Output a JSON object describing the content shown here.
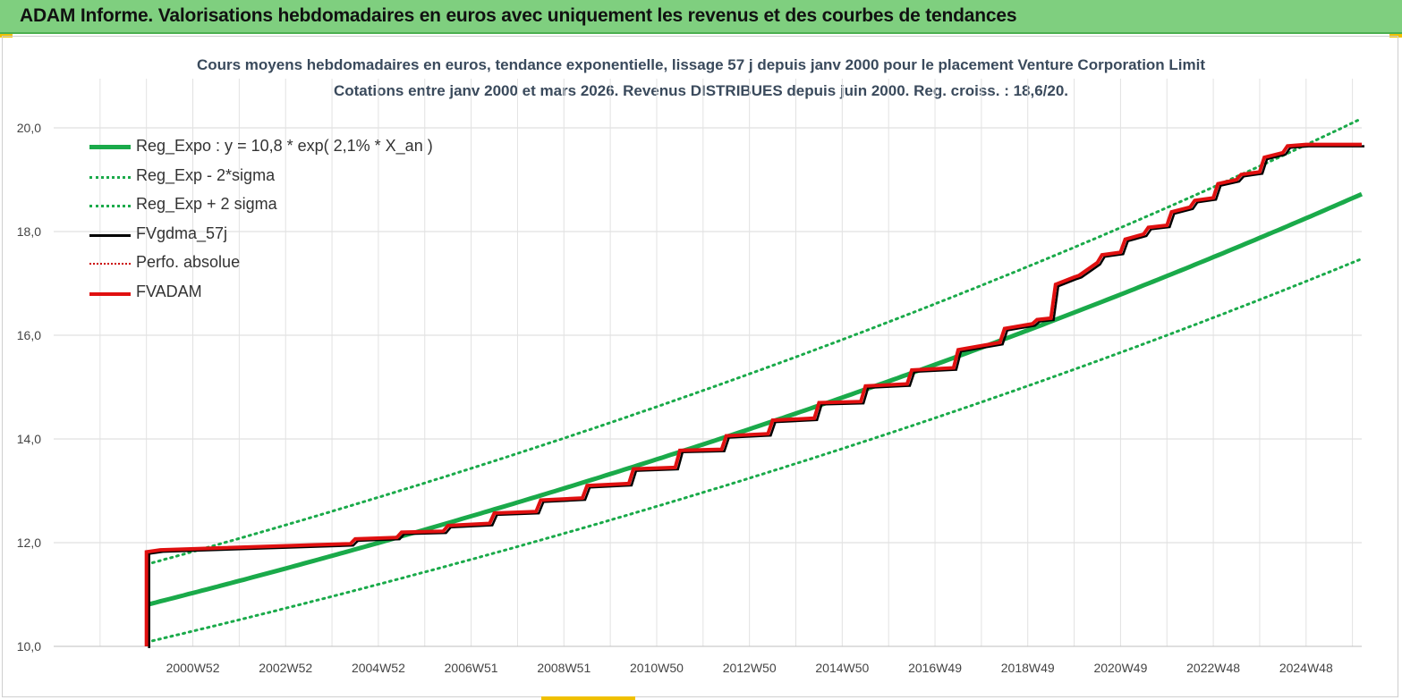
{
  "header": {
    "title": "ADAM Informe. Valorisations hebdomadaires en euros avec uniquement les revenus et des courbes de tendances"
  },
  "chart_data": {
    "type": "line",
    "title": "Cours moyens hebdomadaires en euros, tendance exponentielle, lissage 57 j depuis janv 2000  pour le placement Venture Corporation Limit",
    "subtitle": "Cotations entre janv 2000 et mars 2026. Revenus  DISTRIBUES depuis juin 2000. Reg.  croiss. : 18,6/20.",
    "xlabel": "",
    "ylabel": "",
    "ylim": [
      10,
      20
    ],
    "yticks": [
      "10,0",
      "12,0",
      "14,0",
      "16,0",
      "18,0",
      "20,0"
    ],
    "xticks": [
      "2000W52",
      "2002W52",
      "2004W52",
      "2006W51",
      "2008W51",
      "2010W50",
      "2012W50",
      "2014W50",
      "2016W49",
      "2018W49",
      "2020W49",
      "2022W48",
      "2024W48"
    ],
    "grid": true,
    "legend_position": "top-left",
    "series": [
      {
        "name": "Reg_Expo : y = 10,8 * exp( 2,1% *  X_an )",
        "color": "#1aaa4a",
        "style": "solid-thick",
        "x": [
          2000.0,
          2026.2
        ],
        "y_model": {
          "a": 10.8,
          "rate": 0.021
        }
      },
      {
        "name": "Reg_Exp - 2*sigma",
        "color": "#1aaa4a",
        "style": "dotted",
        "x": [
          2000.0,
          2026.2
        ],
        "y_model": {
          "a": 10.08,
          "rate": 0.021
        }
      },
      {
        "name": "Reg_Exp + 2 sigma",
        "color": "#1aaa4a",
        "style": "dotted",
        "x": [
          2000.0,
          2026.2
        ],
        "y_model": {
          "a": 11.58,
          "rate": 0.0212
        }
      },
      {
        "name": "FVgdma_57j",
        "color": "#000000",
        "style": "solid"
      },
      {
        "name": "Perfo. absolue",
        "color": "#cc0000",
        "style": "dotted"
      },
      {
        "name": "FVADAM",
        "color": "#e01010",
        "style": "solid-thick",
        "x": [
          2000.0,
          2000.0,
          2000.3,
          2004.4,
          2004.5,
          2005.4,
          2005.5,
          2006.4,
          2006.5,
          2007.4,
          2007.5,
          2008.4,
          2008.5,
          2009.4,
          2009.5,
          2010.4,
          2010.5,
          2011.4,
          2011.5,
          2012.4,
          2012.5,
          2013.4,
          2013.5,
          2014.4,
          2014.5,
          2015.4,
          2015.5,
          2016.4,
          2016.5,
          2017.4,
          2017.5,
          2018.4,
          2018.5,
          2019.1,
          2019.2,
          2019.5,
          2019.6,
          2020.0,
          2020.1,
          2020.5,
          2020.6,
          2021.0,
          2021.1,
          2021.5,
          2021.6,
          2022.0,
          2022.1,
          2022.5,
          2022.6,
          2023.0,
          2023.1,
          2023.5,
          2023.6,
          2024.0,
          2024.1,
          2024.5,
          2024.6,
          2025.0,
          2025.1,
          2025.3,
          2025.4,
          2026.2
        ],
        "y": [
          10.0,
          11.82,
          11.86,
          11.98,
          12.07,
          12.1,
          12.2,
          12.22,
          12.33,
          12.37,
          12.57,
          12.6,
          12.82,
          12.86,
          13.1,
          13.14,
          13.42,
          13.45,
          13.78,
          13.8,
          14.06,
          14.1,
          14.36,
          14.4,
          14.7,
          14.72,
          15.02,
          15.06,
          15.33,
          15.37,
          15.72,
          15.86,
          16.13,
          16.22,
          16.3,
          16.33,
          16.98,
          17.12,
          17.15,
          17.4,
          17.55,
          17.6,
          17.85,
          17.95,
          18.08,
          18.12,
          18.38,
          18.47,
          18.6,
          18.65,
          18.92,
          19.0,
          19.1,
          19.15,
          19.43,
          19.52,
          19.65,
          19.68,
          19.68,
          19.68,
          19.68,
          19.68
        ]
      }
    ]
  }
}
